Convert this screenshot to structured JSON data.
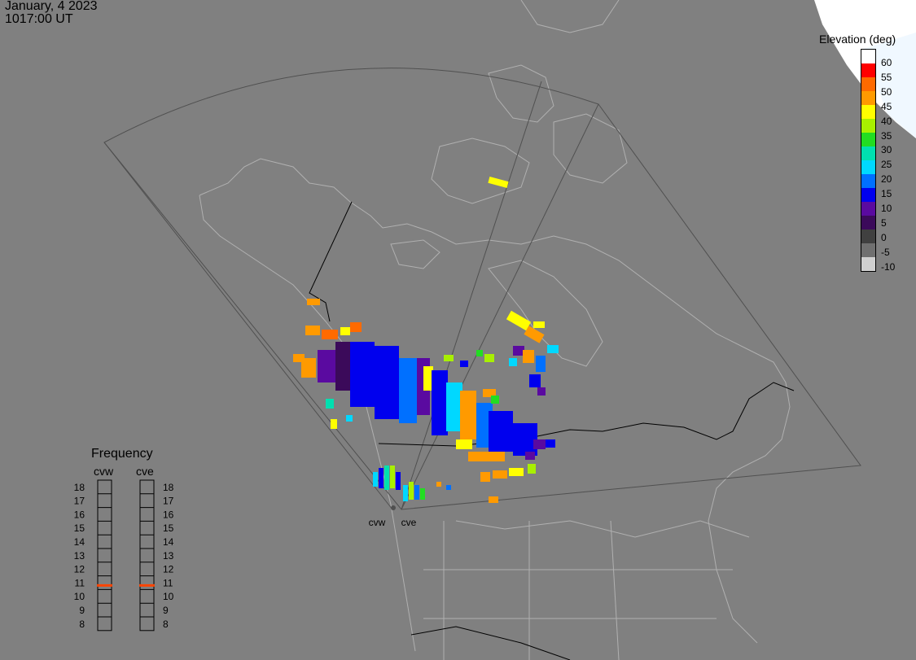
{
  "header": {
    "date": "January, 4 2023",
    "time": "1017:00 UT"
  },
  "scale": {
    "title": "Elevation (deg)",
    "levels": [
      {
        "label": "60",
        "color": "#ff0000"
      },
      {
        "label": "55",
        "color": "#ff6a00"
      },
      {
        "label": "50",
        "color": "#ff9a00"
      },
      {
        "label": "45",
        "color": "#ffff00"
      },
      {
        "label": "40",
        "color": "#a8f000"
      },
      {
        "label": "35",
        "color": "#22dd22"
      },
      {
        "label": "30",
        "color": "#00e0b0"
      },
      {
        "label": "25",
        "color": "#00d8ff"
      },
      {
        "label": "20",
        "color": "#0070ff"
      },
      {
        "label": "15",
        "color": "#0000ee"
      },
      {
        "label": "10",
        "color": "#5a0aa0"
      },
      {
        "label": "5",
        "color": "#3b0a5a"
      },
      {
        "label": "0",
        "color": "#404040"
      },
      {
        "label": "-5",
        "color": "#707070"
      },
      {
        "label": "-10",
        "color": "#d0d0d0"
      }
    ],
    "top_color": "#ffffff"
  },
  "frequency": {
    "title": "Frequency",
    "radars": [
      {
        "name": "cvw",
        "mhz": 10.8
      },
      {
        "name": "cve",
        "mhz": 10.8
      }
    ],
    "ticks": [
      "18",
      "17",
      "16",
      "15",
      "14",
      "13",
      "12",
      "11",
      "10",
      "9",
      "8"
    ],
    "marker_color": "#ff4400"
  },
  "sites": [
    {
      "name": "cvw"
    },
    {
      "name": "cve"
    }
  ],
  "colors": {
    "background": "#808080",
    "coast": "#b0b0b0",
    "fov": "#505050",
    "border": "#000000"
  }
}
